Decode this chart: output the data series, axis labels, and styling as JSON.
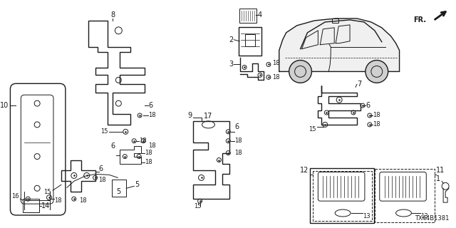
{
  "bg_color": "#ffffff",
  "line_color": "#1a1a1a",
  "diagram_code": "TX44B1381",
  "fig_width": 6.4,
  "fig_height": 3.2,
  "dpi": 100
}
